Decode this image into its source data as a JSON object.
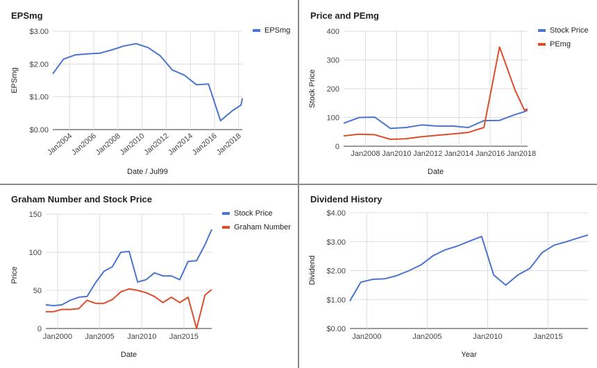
{
  "colors": {
    "blue": "#4a74d0",
    "red": "#dc4d2b",
    "grid": "#dddddd",
    "axis": "#333333"
  },
  "chart_data": [
    {
      "id": "epsmg",
      "type": "line",
      "title": "EPSmg",
      "xlabel": "Date / Jul99",
      "ylabel": "EPSmg",
      "xlim": [
        2002.6,
        2018.3
      ],
      "ylim": [
        0,
        3
      ],
      "yticks": [
        {
          "v": 0,
          "label": "$0.00"
        },
        {
          "v": 1,
          "label": "$1.00"
        },
        {
          "v": 2,
          "label": "$2.00"
        },
        {
          "v": 3,
          "label": "$3.00"
        }
      ],
      "xticks": [
        {
          "v": 2004,
          "label": "Jan2004"
        },
        {
          "v": 2006,
          "label": "Jan2006"
        },
        {
          "v": 2008,
          "label": "Jan2008"
        },
        {
          "v": 2010,
          "label": "Jan2010"
        },
        {
          "v": 2012,
          "label": "Jan2012"
        },
        {
          "v": 2014,
          "label": "Jan2014"
        },
        {
          "v": 2016,
          "label": "Jan2016"
        },
        {
          "v": 2018,
          "label": "Jan2018"
        }
      ],
      "xtick_rotate": true,
      "vgrid": true,
      "legend": "top-right",
      "series": [
        {
          "name": "EPSmg",
          "color": "blue",
          "x": [
            2002.6,
            2003.5,
            2004.5,
            2005.5,
            2006.5,
            2007.5,
            2008.5,
            2009.5,
            2010.5,
            2011.5,
            2012.5,
            2013.5,
            2014.5,
            2015.5,
            2016.5,
            2017.5,
            2018.2,
            2018.3
          ],
          "y": [
            1.7,
            2.15,
            2.28,
            2.31,
            2.33,
            2.43,
            2.55,
            2.62,
            2.5,
            2.25,
            1.82,
            1.66,
            1.37,
            1.39,
            0.27,
            0.58,
            0.75,
            0.95
          ]
        }
      ]
    },
    {
      "id": "price-pe",
      "type": "line",
      "title": "Price and PEmg",
      "xlabel": "Date",
      "ylabel": "Stock Price",
      "xlim": [
        2006.6,
        2018.4
      ],
      "ylim": [
        0,
        400
      ],
      "yticks": [
        {
          "v": 0,
          "label": "0"
        },
        {
          "v": 100,
          "label": "100"
        },
        {
          "v": 200,
          "label": "200"
        },
        {
          "v": 300,
          "label": "300"
        },
        {
          "v": 400,
          "label": "400"
        }
      ],
      "xticks": [
        {
          "v": 2008,
          "label": "Jan2008"
        },
        {
          "v": 2010,
          "label": "Jan2010"
        },
        {
          "v": 2012,
          "label": "Jan2012"
        },
        {
          "v": 2014,
          "label": "Jan2014"
        },
        {
          "v": 2016,
          "label": "Jan2016"
        },
        {
          "v": 2018,
          "label": "Jan2018"
        }
      ],
      "xtick_rotate": false,
      "vgrid": true,
      "legend": "top-right",
      "series": [
        {
          "name": "Stock Price",
          "color": "blue",
          "x": [
            2006.6,
            2007.6,
            2008.6,
            2009.6,
            2010.6,
            2011.6,
            2012.6,
            2013.6,
            2014.6,
            2015.6,
            2016.6,
            2017.6,
            2018.2,
            2018.4
          ],
          "y": [
            80,
            100,
            101,
            62,
            65,
            74,
            70,
            70,
            65,
            89,
            90,
            110,
            120,
            125
          ]
        },
        {
          "name": "PEmg",
          "color": "red",
          "x": [
            2006.6,
            2007.6,
            2008.6,
            2009.6,
            2010.6,
            2011.6,
            2012.6,
            2013.6,
            2014.6,
            2015.6,
            2016.6,
            2017.6,
            2018.2,
            2018.4
          ],
          "y": [
            36,
            42,
            40,
            24,
            26,
            33,
            38,
            43,
            48,
            65,
            345,
            195,
            125,
            130
          ]
        }
      ]
    },
    {
      "id": "graham",
      "type": "line",
      "title": "Graham Number and Stock Price",
      "xlabel": "Date",
      "ylabel": "Price",
      "xlim": [
        1998.6,
        2018.3
      ],
      "ylim": [
        0,
        150
      ],
      "yticks": [
        {
          "v": 0,
          "label": "0"
        },
        {
          "v": 50,
          "label": "50"
        },
        {
          "v": 100,
          "label": "100"
        },
        {
          "v": 150,
          "label": "150"
        }
      ],
      "xticks": [
        {
          "v": 2000,
          "label": "Jan2000"
        },
        {
          "v": 2005,
          "label": "Jan2005"
        },
        {
          "v": 2010,
          "label": "Jan2010"
        },
        {
          "v": 2015,
          "label": "Jan2015"
        }
      ],
      "xtick_rotate": false,
      "vgrid": true,
      "legend": "top-right",
      "series": [
        {
          "name": "Stock Price",
          "color": "blue",
          "x": [
            1998.6,
            1999.5,
            2000.5,
            2001.5,
            2002.5,
            2003.5,
            2004.5,
            2005.5,
            2006.5,
            2007.5,
            2008.5,
            2009.5,
            2010.5,
            2011.5,
            2012.5,
            2013.5,
            2014.5,
            2015.5,
            2016.5,
            2017.5,
            2018.3
          ],
          "y": [
            31,
            30,
            31,
            37,
            41,
            42,
            60,
            75,
            81,
            100,
            101,
            61,
            64,
            73,
            69,
            69,
            64,
            88,
            89,
            110,
            130
          ]
        },
        {
          "name": "Graham Number",
          "color": "red",
          "x": [
            1998.6,
            1999.5,
            2000.5,
            2001.5,
            2002.5,
            2003.5,
            2004.5,
            2005.5,
            2006.5,
            2007.5,
            2008.5,
            2009.5,
            2010.5,
            2011.5,
            2012.5,
            2013.5,
            2014.5,
            2015.5,
            2016.5,
            2017.5,
            2018.3
          ],
          "y": [
            22,
            22,
            25,
            25,
            26,
            37,
            33,
            33,
            38,
            48,
            52,
            50,
            47,
            42,
            34,
            41,
            34,
            41,
            0,
            44,
            51
          ]
        }
      ]
    },
    {
      "id": "dividend",
      "type": "line",
      "title": "Dividend History",
      "xlabel": "Year",
      "ylabel": "Dividend",
      "xlim": [
        1998.6,
        2018.3
      ],
      "ylim": [
        0,
        4
      ],
      "yticks": [
        {
          "v": 0,
          "label": "$0.00"
        },
        {
          "v": 1,
          "label": "$1.00"
        },
        {
          "v": 2,
          "label": "$2.00"
        },
        {
          "v": 3,
          "label": "$3.00"
        },
        {
          "v": 4,
          "label": "$4.00"
        }
      ],
      "xticks": [
        {
          "v": 2000,
          "label": "Jan2000"
        },
        {
          "v": 2005,
          "label": "Jan2005"
        },
        {
          "v": 2010,
          "label": "Jan2010"
        },
        {
          "v": 2015,
          "label": "Jan2015"
        }
      ],
      "xtick_rotate": false,
      "vgrid": true,
      "legend": "none",
      "series": [
        {
          "name": "",
          "color": "blue",
          "x": [
            1998.6,
            1999.5,
            2000.5,
            2001.5,
            2002.5,
            2003.5,
            2004.5,
            2005.5,
            2006.5,
            2007.5,
            2008.5,
            2009.5,
            2010.5,
            2011.5,
            2012.5,
            2013.5,
            2014.5,
            2015.5,
            2016.5,
            2017.5,
            2018.3
          ],
          "y": [
            0.95,
            1.6,
            1.7,
            1.72,
            1.83,
            2.0,
            2.2,
            2.52,
            2.72,
            2.85,
            3.02,
            3.18,
            1.85,
            1.5,
            1.85,
            2.08,
            2.62,
            2.88,
            3.0,
            3.13,
            3.23
          ]
        }
      ]
    }
  ]
}
